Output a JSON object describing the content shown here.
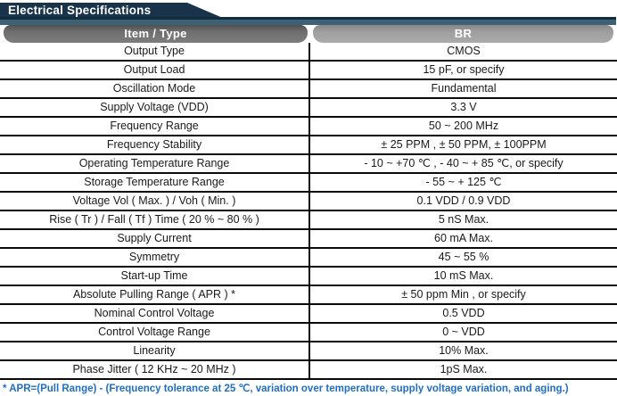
{
  "page": {
    "title": "Electrical Specifications"
  },
  "colors": {
    "header_navy": "#18334a",
    "bar_teal": "#3e6273",
    "pill_dark_grey": "#6e6e6e",
    "pill_light_grey": "#9d9d9d",
    "footnote_blue": "#1e6fc5"
  },
  "table": {
    "headers": {
      "item": "Item / Type",
      "type": "BR"
    },
    "rows": [
      {
        "item": "Output Type",
        "value": "CMOS"
      },
      {
        "item": "Output Load",
        "value": "15 pF, or specify"
      },
      {
        "item": "Oscillation Mode",
        "value": "Fundamental"
      },
      {
        "item": "Supply Voltage (VDD)",
        "value": "3.3 V"
      },
      {
        "item": "Frequency Range",
        "value": "50 ~ 200 MHz"
      },
      {
        "item": "Frequency Stability",
        "value": "± 25 PPM , ± 50 PPM, ± 100PPM"
      },
      {
        "item": "Operating Temperature Range",
        "value": "- 10 ~ +70 ℃ , - 40 ~ + 85 ℃, or specify"
      },
      {
        "item": "Storage Temperature Range",
        "value": "- 55 ~ + 125 ℃"
      },
      {
        "item": "Voltage Vol ( Max. ) / Voh ( Min. )",
        "value": "0.1 VDD / 0.9 VDD"
      },
      {
        "item": "Rise ( Tr ) / Fall ( Tf ) Time ( 20 % ~ 80 % )",
        "value": "5 nS Max."
      },
      {
        "item": "Supply Current",
        "value": "60 mA Max."
      },
      {
        "item": "Symmetry",
        "value": "45 ~ 55 %"
      },
      {
        "item": "Start-up Time",
        "value": "10 mS Max."
      },
      {
        "item": "Absolute Pulling Range ( APR ) *",
        "value": "± 50 ppm Min , or specify"
      },
      {
        "item": "Nominal Control Voltage",
        "value": "0.5 VDD"
      },
      {
        "item": "Control Voltage Range",
        "value": "0 ~ VDD"
      },
      {
        "item": "Linearity",
        "value": "10% Max."
      },
      {
        "item": "Phase Jitter ( 12 KHz ~ 20 MHz )",
        "value": "1pS Max."
      }
    ],
    "footnote": "* APR=(Pull Range) - (Frequency tolerance at 25 ℃, variation over temperature, supply voltage variation, and aging.)"
  }
}
